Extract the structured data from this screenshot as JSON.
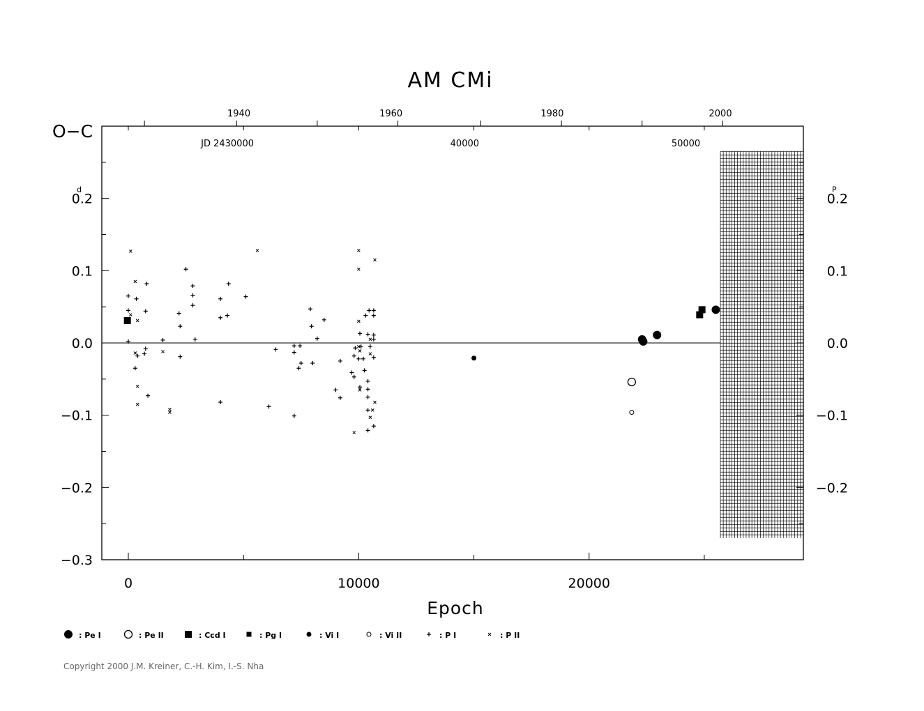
{
  "chart_data": {
    "type": "scatter",
    "title": "AM  CMi",
    "xlabel": "Epoch",
    "ylabel_left": "O−C",
    "xlim": [
      -1150,
      29300
    ],
    "ylim": [
      -0.3,
      0.3
    ],
    "x_ticks": [
      {
        "value": 0,
        "label": "0"
      },
      {
        "value": 10000,
        "label": "10000"
      },
      {
        "value": 20000,
        "label": "20000"
      }
    ],
    "y_ticks_left": [
      {
        "value": 0.2,
        "label": "0.2",
        "unit": "d"
      },
      {
        "value": 0.1,
        "label": "0.1"
      },
      {
        "value": 0.0,
        "label": "0.0"
      },
      {
        "value": -0.1,
        "label": "−0.1"
      },
      {
        "value": -0.2,
        "label": "−0.2"
      },
      {
        "value": -0.3,
        "label": "−0.3"
      }
    ],
    "y_ticks_right": [
      {
        "value": 0.2,
        "label": "0.2",
        "unit": "P"
      },
      {
        "value": 0.1,
        "label": "0.1"
      },
      {
        "value": 0.0,
        "label": "0.0"
      },
      {
        "value": -0.1,
        "label": "−0.1"
      },
      {
        "value": -0.2,
        "label": "−0.2"
      }
    ],
    "top_year_labels": [
      {
        "epoch": 4800,
        "label": "1940"
      },
      {
        "epoch": 11400,
        "label": "1960"
      },
      {
        "epoch": 18400,
        "label": "1980"
      },
      {
        "epoch": 25700,
        "label": "2000"
      }
    ],
    "top_year_ticks": [
      700,
      4700,
      8200,
      11700,
      15300,
      18800,
      22300,
      25800
    ],
    "jd_labels": [
      {
        "epoch": 4300,
        "label": "JD  2430000"
      },
      {
        "epoch": 14600,
        "label": "40000"
      },
      {
        "epoch": 24200,
        "label": "50000"
      }
    ],
    "hatched_region": {
      "x_from": 25700,
      "x_to": 29300,
      "y_from": -0.27,
      "y_to": 0.265
    },
    "zero_line": true,
    "legend": [
      {
        "symbol": "Pe I",
        "label": ": Pe  I"
      },
      {
        "symbol": "Pe II",
        "label": ": Pe  II"
      },
      {
        "symbol": "Ccd I",
        "label": ": Ccd  I"
      },
      {
        "symbol": "Pg I",
        "label": ": Pg  I"
      },
      {
        "symbol": "Vi I",
        "label": ": Vi  I"
      },
      {
        "symbol": "Vi II",
        "label": ": Vi  II"
      },
      {
        "symbol": "P I",
        "label": ": P  I"
      },
      {
        "symbol": "P II",
        "label": ": P  II"
      }
    ],
    "series": [
      {
        "name": "Pe I",
        "marker": "big-filled-circle",
        "points": [
          [
            22300,
            0.005
          ],
          [
            22350,
            0.002
          ],
          [
            22950,
            0.011
          ],
          [
            25500,
            0.046
          ]
        ]
      },
      {
        "name": "Pe II",
        "marker": "big-open-circle",
        "points": [
          [
            21850,
            -0.054
          ]
        ]
      },
      {
        "name": "Ccd I",
        "marker": "big-filled-square",
        "points": [
          [
            -40,
            0.031
          ],
          [
            24800,
            0.039
          ],
          [
            24900,
            0.046
          ]
        ]
      },
      {
        "name": "Pg I",
        "marker": "small-filled-square",
        "points": []
      },
      {
        "name": "Vi I",
        "marker": "small-filled-circle",
        "points": [
          [
            15000,
            -0.021
          ]
        ]
      },
      {
        "name": "Vi II",
        "marker": "small-open-circle",
        "points": [
          [
            21850,
            -0.096
          ]
        ]
      },
      {
        "name": "P I",
        "marker": "plus",
        "points": [
          [
            0,
            0.065
          ],
          [
            0,
            0.045
          ],
          [
            0,
            0.002
          ],
          [
            300,
            -0.035
          ],
          [
            350,
            0.061
          ],
          [
            400,
            -0.018
          ],
          [
            700,
            -0.015
          ],
          [
            750,
            -0.008
          ],
          [
            800,
            0.082
          ],
          [
            750,
            0.044
          ],
          [
            850,
            -0.073
          ],
          [
            1500,
            0.004
          ],
          [
            2200,
            0.041
          ],
          [
            2250,
            0.023
          ],
          [
            2250,
            -0.019
          ],
          [
            2500,
            0.102
          ],
          [
            2800,
            0.079
          ],
          [
            2800,
            0.066
          ],
          [
            2800,
            0.052
          ],
          [
            2900,
            0.005
          ],
          [
            4000,
            0.061
          ],
          [
            4000,
            0.035
          ],
          [
            4000,
            -0.082
          ],
          [
            4300,
            0.038
          ],
          [
            4350,
            0.082
          ],
          [
            5100,
            0.064
          ],
          [
            6100,
            -0.088
          ],
          [
            6400,
            -0.009
          ],
          [
            7200,
            -0.004
          ],
          [
            7200,
            -0.013
          ],
          [
            7200,
            -0.101
          ],
          [
            7400,
            -0.035
          ],
          [
            7450,
            -0.004
          ],
          [
            7500,
            -0.028
          ],
          [
            7900,
            0.047
          ],
          [
            7950,
            0.023
          ],
          [
            8000,
            -0.028
          ],
          [
            8200,
            0.006
          ],
          [
            8500,
            0.032
          ],
          [
            9000,
            -0.065
          ],
          [
            9200,
            -0.076
          ],
          [
            9200,
            -0.025
          ],
          [
            9700,
            -0.041
          ],
          [
            9800,
            -0.018
          ],
          [
            9800,
            -0.047
          ],
          [
            9850,
            -0.007
          ],
          [
            10000,
            -0.022
          ],
          [
            10050,
            -0.061
          ],
          [
            10050,
            0.013
          ],
          [
            10100,
            -0.005
          ],
          [
            10300,
            0.038
          ],
          [
            10400,
            -0.053
          ],
          [
            10400,
            -0.064
          ],
          [
            10400,
            -0.075
          ],
          [
            10400,
            0.012
          ],
          [
            10400,
            -0.093
          ],
          [
            10400,
            -0.121
          ],
          [
            10450,
            0.045
          ],
          [
            10500,
            -0.005
          ],
          [
            10650,
            0.045
          ],
          [
            10650,
            0.038
          ],
          [
            10650,
            0.011
          ],
          [
            10650,
            0.005
          ],
          [
            10650,
            -0.02
          ],
          [
            10650,
            -0.115
          ],
          [
            10250,
            -0.038
          ],
          [
            10200,
            -0.022
          ]
        ]
      },
      {
        "name": "P II",
        "marker": "cross",
        "points": [
          [
            100,
            0.127
          ],
          [
            300,
            0.085
          ],
          [
            300,
            -0.014
          ],
          [
            400,
            0.031
          ],
          [
            400,
            -0.06
          ],
          [
            400,
            -0.085
          ],
          [
            100,
            0.039
          ],
          [
            1500,
            -0.012
          ],
          [
            1800,
            -0.092
          ],
          [
            1800,
            -0.096
          ],
          [
            5600,
            0.128
          ],
          [
            10000,
            0.128
          ],
          [
            10000,
            0.102
          ],
          [
            10000,
            0.03
          ],
          [
            10000,
            -0.005
          ],
          [
            10050,
            -0.065
          ],
          [
            10050,
            -0.011
          ],
          [
            10500,
            -0.015
          ],
          [
            10500,
            -0.103
          ],
          [
            10600,
            -0.093
          ],
          [
            10700,
            0.115
          ],
          [
            10700,
            -0.082
          ],
          [
            9800,
            -0.124
          ],
          [
            10500,
            0.005
          ]
        ]
      }
    ]
  },
  "footer": {
    "copyright": "Copyright 2000 J.M. Kreiner, C.-H. Kim, I.-S. Nha"
  }
}
